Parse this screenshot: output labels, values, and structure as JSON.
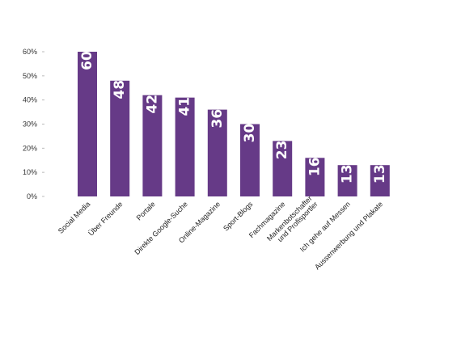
{
  "chart_data": {
    "type": "bar",
    "categories": [
      [
        "Social Media"
      ],
      [
        "Über Freunde"
      ],
      [
        "Portale"
      ],
      [
        "Direkte Google-Suche"
      ],
      [
        "Online-Magazine"
      ],
      [
        "Sport-Blogs"
      ],
      [
        "Fachmagazine"
      ],
      [
        "Markenbotschafter",
        "und Profisportler"
      ],
      [
        "Ich gehe auf Messen"
      ],
      [
        "Aussenwerbung und Plakate"
      ]
    ],
    "values": [
      60,
      48,
      42,
      41,
      36,
      30,
      23,
      16,
      13,
      13
    ],
    "value_labels": [
      "60",
      "48",
      "42",
      "41",
      "36",
      "30",
      "23",
      "16",
      "13",
      "13"
    ],
    "ylim": [
      0,
      60
    ],
    "yticks": [
      0,
      10,
      20,
      30,
      40,
      50,
      60
    ],
    "ytick_labels": [
      "0%",
      "10%",
      "20%",
      "30%",
      "40%",
      "50%",
      "60%"
    ],
    "grid": false,
    "bar_color": "#663a87"
  }
}
